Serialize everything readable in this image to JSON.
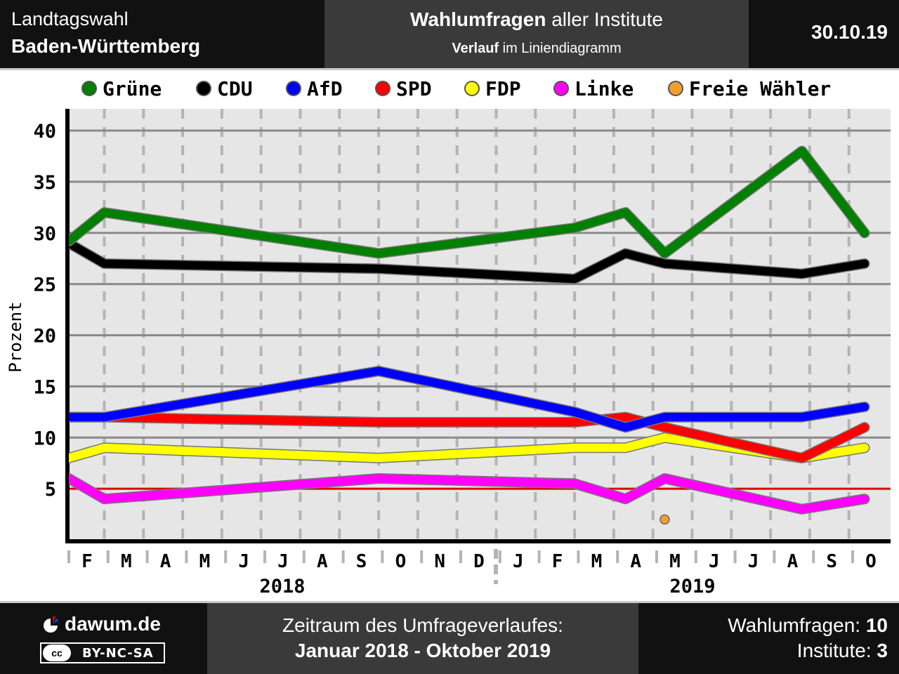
{
  "header": {
    "title_line1": "Landtagswahl",
    "title_line2": "Baden-Württemberg",
    "center_bold": "Wahlumfragen",
    "center_rest": " aller Institute",
    "sub_bold": "Verlauf",
    "sub_rest": " im Liniendiagramm",
    "date": "30.10.19"
  },
  "footer": {
    "brand": "dawum.de",
    "license": "BY-NC-SA",
    "license_cc": "cc",
    "period_label": "Zeitraum des Umfrageverlaufes:",
    "period_value": "Januar 2018 - Oktober 2019",
    "polls_label": "Wahlumfragen: ",
    "polls_value": "10",
    "institutes_label": "Institute: ",
    "institutes_value": "3"
  },
  "chart_data": {
    "type": "line",
    "ylabel": "Prozent",
    "ylim": [
      0,
      42
    ],
    "yticks": [
      5,
      10,
      15,
      20,
      25,
      30,
      35,
      40
    ],
    "threshold": 5,
    "month_labels": [
      "F",
      "M",
      "A",
      "M",
      "J",
      "J",
      "A",
      "S",
      "O",
      "N",
      "D",
      "J",
      "F",
      "M",
      "A",
      "M",
      "J",
      "J",
      "A",
      "S",
      "O"
    ],
    "years": [
      "2018",
      "2019"
    ],
    "legend_position": "top",
    "series": [
      {
        "name": "Grüne",
        "color": "#008000",
        "points": [
          [
            0,
            29.2
          ],
          [
            1,
            32
          ],
          [
            8,
            28
          ],
          [
            13,
            30.5
          ],
          [
            14.3,
            32
          ],
          [
            15.3,
            28
          ],
          [
            18.8,
            38
          ],
          [
            20.4,
            30
          ]
        ]
      },
      {
        "name": "CDU",
        "color": "#000000",
        "points": [
          [
            0,
            29
          ],
          [
            1,
            27
          ],
          [
            8,
            26.5
          ],
          [
            13,
            25.5
          ],
          [
            14.3,
            28
          ],
          [
            15.3,
            27
          ],
          [
            18.8,
            26
          ],
          [
            20.4,
            27
          ]
        ]
      },
      {
        "name": "AfD",
        "color": "#0000ff",
        "points": [
          [
            0,
            12
          ],
          [
            1,
            12
          ],
          [
            8,
            16.5
          ],
          [
            13,
            12.5
          ],
          [
            14.3,
            11
          ],
          [
            15.3,
            12
          ],
          [
            18.8,
            12
          ],
          [
            20.4,
            13
          ]
        ]
      },
      {
        "name": "SPD",
        "color": "#ff0000",
        "points": [
          [
            0,
            12
          ],
          [
            1,
            12
          ],
          [
            8,
            11.5
          ],
          [
            13,
            11.5
          ],
          [
            14.3,
            12
          ],
          [
            15.3,
            11
          ],
          [
            18.8,
            8
          ],
          [
            20.4,
            11
          ]
        ]
      },
      {
        "name": "FDP",
        "color": "#ffff00",
        "points": [
          [
            0,
            8
          ],
          [
            1,
            9
          ],
          [
            8,
            8
          ],
          [
            13,
            9
          ],
          [
            14.3,
            9
          ],
          [
            15.3,
            10
          ],
          [
            18.8,
            8
          ],
          [
            20.4,
            9
          ]
        ]
      },
      {
        "name": "Linke",
        "color": "#ff00ff",
        "points": [
          [
            0,
            6
          ],
          [
            1,
            4
          ],
          [
            8,
            6
          ],
          [
            13,
            5.5
          ],
          [
            14.3,
            4
          ],
          [
            15.3,
            6
          ],
          [
            18.8,
            3
          ],
          [
            20.4,
            4
          ]
        ]
      },
      {
        "name": "Freie Wähler",
        "color": "#f0a030",
        "points": [
          [
            15.3,
            2
          ]
        ]
      }
    ]
  }
}
